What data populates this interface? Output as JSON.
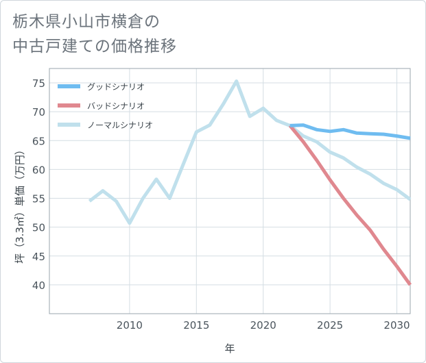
{
  "title": {
    "line1": "栃木県小山市横倉の",
    "line2": "中古戸建ての価格推移"
  },
  "chart_data": {
    "type": "line",
    "title": "栃木県小山市横倉の中古戸建ての価格推移",
    "xlabel": "年",
    "ylabel": "坪（3.3㎡）単価（万円）",
    "xlim": [
      2004,
      2031
    ],
    "ylim": [
      35,
      77.5
    ],
    "xticks": [
      2010,
      2015,
      2020,
      2025,
      2030
    ],
    "yticks": [
      40,
      45,
      50,
      55,
      60,
      65,
      70,
      75
    ],
    "grid": true,
    "legend_position": "top-left",
    "series": [
      {
        "name": "グッドシナリオ",
        "color": "#6fbcf0",
        "points": [
          [
            2022,
            67.6
          ],
          [
            2023,
            67.7
          ],
          [
            2024,
            66.9
          ],
          [
            2025,
            66.6
          ],
          [
            2026,
            66.9
          ],
          [
            2027,
            66.3
          ],
          [
            2028,
            66.2
          ],
          [
            2029,
            66.1
          ],
          [
            2030,
            65.8
          ],
          [
            2031,
            65.4
          ]
        ]
      },
      {
        "name": "バッドシナリオ",
        "color": "#e0888f",
        "points": [
          [
            2022,
            67.6
          ],
          [
            2023,
            64.8
          ],
          [
            2024,
            61.6
          ],
          [
            2025,
            58.2
          ],
          [
            2026,
            55.0
          ],
          [
            2027,
            52.1
          ],
          [
            2028,
            49.5
          ],
          [
            2029,
            46.2
          ],
          [
            2030,
            43.2
          ],
          [
            2031,
            40.0
          ]
        ]
      },
      {
        "name": "ノーマルシナリオ",
        "color": "#c0e0ec",
        "points": [
          [
            2007,
            54.5
          ],
          [
            2008,
            56.3
          ],
          [
            2009,
            54.5
          ],
          [
            2010,
            50.7
          ],
          [
            2011,
            55.0
          ],
          [
            2012,
            58.3
          ],
          [
            2013,
            55.0
          ],
          [
            2014,
            60.8
          ],
          [
            2015,
            66.5
          ],
          [
            2016,
            67.7
          ],
          [
            2017,
            71.3
          ],
          [
            2018,
            75.3
          ],
          [
            2019,
            69.2
          ],
          [
            2020,
            70.6
          ],
          [
            2021,
            68.5
          ],
          [
            2022,
            67.6
          ],
          [
            2023,
            65.8
          ],
          [
            2024,
            64.8
          ],
          [
            2025,
            63.0
          ],
          [
            2026,
            62.0
          ],
          [
            2027,
            60.4
          ],
          [
            2028,
            59.2
          ],
          [
            2029,
            57.6
          ],
          [
            2030,
            56.5
          ],
          [
            2031,
            54.8
          ]
        ]
      }
    ]
  }
}
